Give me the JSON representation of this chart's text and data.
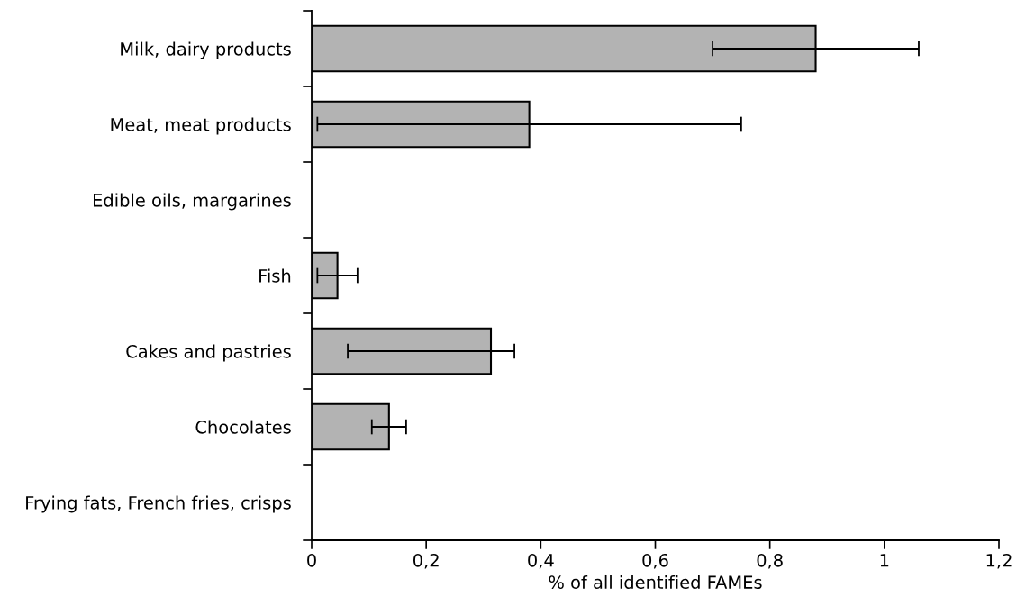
{
  "chart_data": {
    "type": "bar",
    "orientation": "horizontal",
    "xlabel": "% of all identified FAMEs",
    "categories": [
      "Milk, dairy products",
      "Meat, meat products",
      "Edible oils, margarines",
      "Fish",
      "Cakes and pastries",
      "Chocolates",
      "Frying fats, French fries, crisps"
    ],
    "values": [
      0.88,
      0.38,
      null,
      0.045,
      0.313,
      0.135,
      null
    ],
    "errors": [
      0.18,
      0.37,
      null,
      0.035,
      [
        0.063,
        0.354
      ],
      0.03,
      null
    ],
    "color": "#b3b3b3",
    "xlim": [
      0,
      1.2
    ],
    "xticks": [
      0,
      {
        "value": 0.2,
        "label": "0,2"
      },
      {
        "value": 0.4,
        "label": "0,4"
      },
      {
        "value": 0.6,
        "label": "0,6"
      },
      {
        "value": 0.8,
        "label": "0,8"
      },
      1,
      {
        "value": 1.2,
        "label": "1,2"
      }
    ],
    "grid": false,
    "legend": false
  }
}
